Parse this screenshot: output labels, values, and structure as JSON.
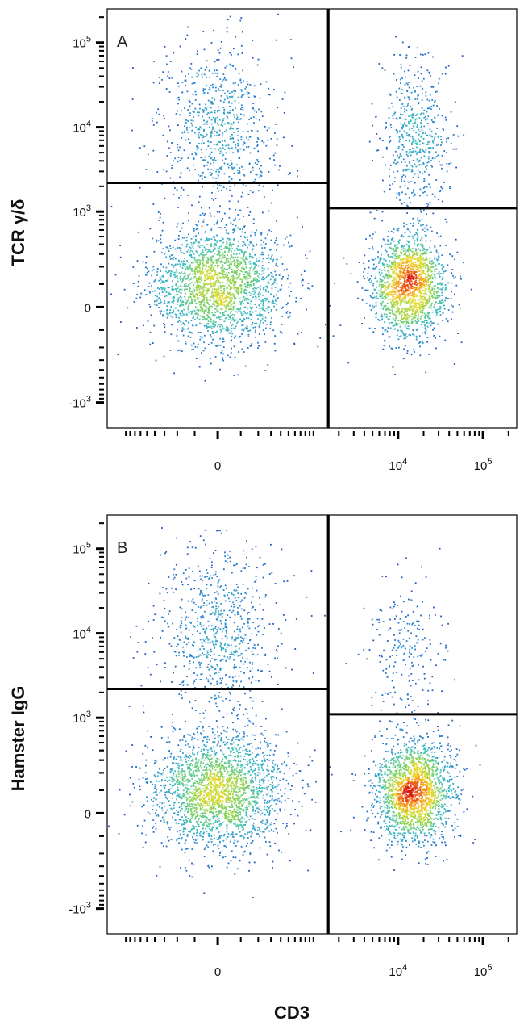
{
  "figure": {
    "xlabel": "CD3"
  },
  "chart_data": [
    {
      "type": "scatter",
      "panel_label": "A",
      "xlabel": "CD3",
      "ylabel": "TCR γ/δ",
      "x_scale": "biexponential",
      "y_scale": "biexponential",
      "x_ticks": [
        "0",
        "10^4",
        "10^5"
      ],
      "y_ticks": [
        "10^5",
        "10^4",
        "10^3",
        "0",
        "-10^3"
      ],
      "xlim": [
        -1500,
        250000
      ],
      "ylim": [
        -2000,
        250000
      ],
      "gates": {
        "vertical_x": 1500,
        "left_horizontal_y": 2200,
        "right_horizontal_y": 1100
      },
      "populations": [
        {
          "name": "",
          "center": [
            0,
            100
          ],
          "spread_decades": [
            0.8,
            0.7
          ],
          "weight": 0.4
        },
        {
          "name": "",
          "center": [
            13000,
            100
          ],
          "spread_decades": [
            0.45,
            0.6
          ],
          "weight": 0.33
        },
        {
          "name": "",
          "center": [
            0,
            10000
          ],
          "spread_decades": [
            0.7,
            1.0
          ],
          "weight": 0.14
        },
        {
          "name": "",
          "center": [
            15000,
            8000
          ],
          "spread_decades": [
            0.4,
            0.9
          ],
          "weight": 0.1
        }
      ]
    },
    {
      "type": "scatter",
      "panel_label": "B",
      "xlabel": "CD3",
      "ylabel": "Hamster IgG",
      "x_scale": "biexponential",
      "y_scale": "biexponential",
      "x_ticks": [
        "0",
        "10^4",
        "10^5"
      ],
      "y_ticks": [
        "10^5",
        "10^4",
        "10^3",
        "0",
        "-10^3"
      ],
      "xlim": [
        -1500,
        250000
      ],
      "ylim": [
        -2000,
        250000
      ],
      "gates": {
        "vertical_x": 1500,
        "left_horizontal_y": 2200,
        "right_horizontal_y": 1100
      },
      "populations": [
        {
          "name": "",
          "center": [
            0,
            100
          ],
          "spread_decades": [
            0.8,
            0.7
          ],
          "weight": 0.42
        },
        {
          "name": "",
          "center": [
            15000,
            100
          ],
          "spread_decades": [
            0.45,
            0.6
          ],
          "weight": 0.36
        },
        {
          "name": "",
          "center": [
            0,
            10000
          ],
          "spread_decades": [
            0.7,
            1.0
          ],
          "weight": 0.14
        },
        {
          "name": "",
          "center": [
            12000,
            6000
          ],
          "spread_decades": [
            0.45,
            0.9
          ],
          "weight": 0.04
        }
      ]
    }
  ]
}
